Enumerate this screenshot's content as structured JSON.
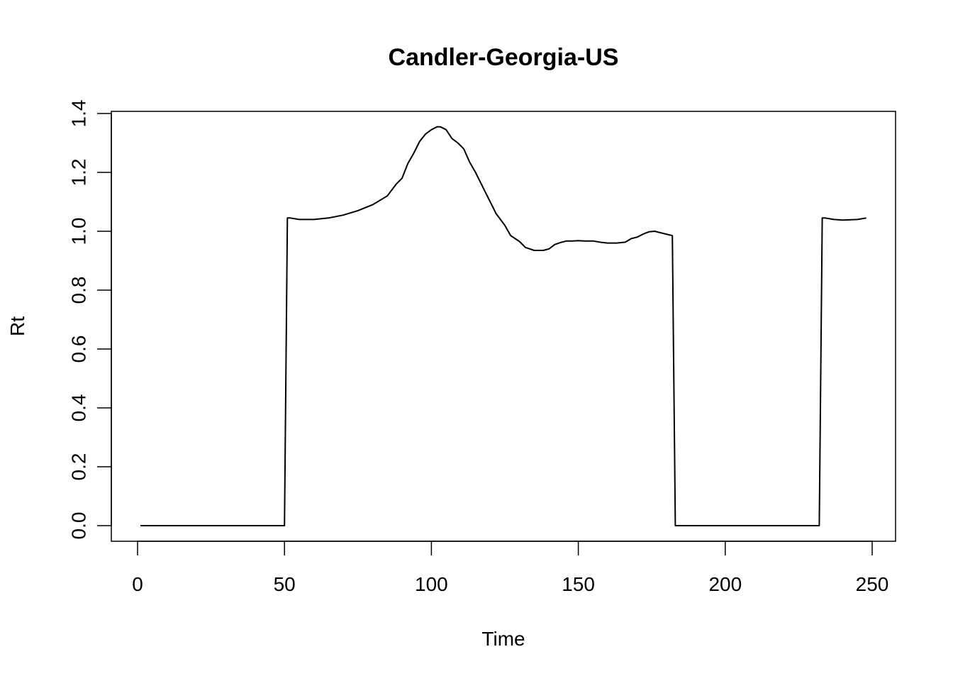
{
  "chart_data": {
    "type": "line",
    "title": "Candler-Georgia-US",
    "xlabel": "Time",
    "ylabel": "Rt",
    "xlim": [
      0,
      250
    ],
    "ylim": [
      0.0,
      1.4
    ],
    "x_ticks": [
      0,
      50,
      100,
      150,
      200,
      250
    ],
    "x_tick_labels": [
      "0",
      "50",
      "100",
      "150",
      "200",
      "250"
    ],
    "y_ticks": [
      0.0,
      0.2,
      0.4,
      0.6,
      0.8,
      1.0,
      1.2,
      1.4
    ],
    "y_tick_labels": [
      "0.0",
      "0.2",
      "0.4",
      "0.6",
      "0.8",
      "1.0",
      "1.2",
      "1.4"
    ],
    "grid": false,
    "legend": "none",
    "series": [
      {
        "x": [
          1,
          50,
          51,
          52,
          55,
          60,
          65,
          70,
          75,
          80,
          85,
          88,
          90,
          92,
          94,
          96,
          98,
          100,
          102,
          103,
          104,
          105,
          107,
          109,
          111,
          113,
          115,
          118,
          120,
          122,
          125,
          127,
          130,
          132,
          135,
          138,
          140,
          142,
          144,
          146,
          148,
          150,
          152,
          155,
          158,
          160,
          163,
          166,
          168,
          170,
          172,
          174,
          176,
          178,
          180,
          182,
          183,
          184,
          190,
          200,
          210,
          220,
          232,
          233,
          234,
          237,
          240,
          245,
          248
        ],
        "values": [
          0.0,
          0.0,
          1.045,
          1.045,
          1.04,
          1.04,
          1.045,
          1.055,
          1.07,
          1.09,
          1.12,
          1.16,
          1.18,
          1.23,
          1.265,
          1.305,
          1.33,
          1.345,
          1.355,
          1.355,
          1.35,
          1.345,
          1.315,
          1.3,
          1.28,
          1.235,
          1.2,
          1.14,
          1.1,
          1.06,
          1.02,
          0.985,
          0.965,
          0.945,
          0.935,
          0.935,
          0.94,
          0.955,
          0.962,
          0.967,
          0.967,
          0.968,
          0.967,
          0.967,
          0.962,
          0.96,
          0.96,
          0.963,
          0.975,
          0.98,
          0.99,
          0.998,
          1.0,
          0.995,
          0.99,
          0.985,
          0.0,
          0.0,
          0.0,
          0.0,
          0.0,
          0.0,
          0.0,
          1.045,
          1.045,
          1.04,
          1.038,
          1.04,
          1.045
        ]
      }
    ]
  }
}
